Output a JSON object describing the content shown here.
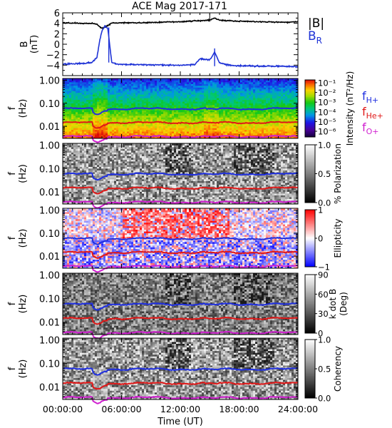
{
  "title": "ACE Mag 2017-171",
  "chart_data": [
    {
      "type": "line",
      "id": "b-field",
      "ylabel": "B",
      "yunit": "(nT)",
      "ylim": [
        -6,
        6
      ],
      "yticks": [
        -4,
        -2,
        0,
        2,
        4,
        6
      ],
      "series": [
        {
          "name": "|B|",
          "color": "#000000",
          "x": [
            0,
            2,
            3,
            3.5,
            4,
            4.5,
            5,
            6,
            8,
            10,
            12,
            13,
            14,
            15,
            15.5,
            16,
            17,
            18,
            20,
            22,
            23,
            24
          ],
          "y": [
            4.1,
            4.0,
            4.0,
            3.8,
            3.0,
            3.5,
            4.0,
            4.1,
            4.1,
            4.2,
            4.3,
            4.4,
            4.5,
            4.6,
            5.0,
            4.6,
            4.5,
            4.4,
            4.3,
            4.2,
            4.2,
            4.3
          ]
        },
        {
          "name": "B",
          "subscript": "R",
          "color": "#1f33d6",
          "x": [
            0,
            2,
            3,
            3.5,
            3.8,
            4.0,
            4.3,
            4.6,
            5.0,
            5.5,
            8,
            10,
            12,
            13.5,
            14,
            15,
            15.5,
            16,
            17,
            18,
            20,
            22,
            24
          ],
          "y": [
            -3.8,
            -3.7,
            -3.5,
            -2.5,
            1.0,
            2.5,
            3.5,
            3.0,
            -3.5,
            -3.8,
            -3.9,
            -4.0,
            -4.0,
            -3.9,
            -2.8,
            -3.0,
            -1.5,
            -3.6,
            -4.0,
            -4.1,
            -4.2,
            -4.2,
            -4.3
          ]
        }
      ]
    },
    {
      "type": "heatmap",
      "id": "intensity",
      "ylabel": "f",
      "yunit": "(Hz)",
      "colorbar_label": "Intensity (nT²/Hz)",
      "colorbar_ticks": [
        "10⁻¹",
        "10⁻²",
        "10⁻³",
        "10⁻⁴",
        "10⁻⁵",
        "10⁻⁶"
      ],
      "colorbar_range": [
        -6.5,
        -0.8
      ],
      "color_scale": "rainbow"
    },
    {
      "type": "heatmap",
      "id": "polarization",
      "ylabel": "f",
      "yunit": "(Hz)",
      "colorbar_label": "% Polarization",
      "colorbar_ticks": [
        "1.0",
        "0.5",
        "0.0"
      ],
      "color_scale": "gray"
    },
    {
      "type": "heatmap",
      "id": "ellipticity",
      "ylabel": "f",
      "yunit": "(Hz)",
      "colorbar_label": "Ellipticity",
      "colorbar_ticks": [
        "1",
        "0",
        "−1"
      ],
      "color_scale": "red-white-blue"
    },
    {
      "type": "heatmap",
      "id": "kdotb",
      "ylabel": "f",
      "yunit": "(Hz)",
      "colorbar_label_lines": [
        "k dot B",
        "(Deg)"
      ],
      "colorbar_ticks": [
        "90",
        "60",
        "30",
        "0"
      ],
      "color_scale": "gray"
    },
    {
      "type": "heatmap",
      "id": "coherency",
      "ylabel": "f",
      "yunit": "(Hz)",
      "colorbar_label": "Coherency",
      "colorbar_ticks": [
        "1.0",
        "0.5",
        "0.0"
      ],
      "color_scale": "gray"
    }
  ],
  "freq_axis": {
    "ylim": [
      0.003,
      1.2
    ],
    "log": true,
    "ticks": [
      {
        "value": 1.0,
        "label": "1.00"
      },
      {
        "value": 0.1,
        "label": "0.10"
      },
      {
        "value": 0.01,
        "label": "0.01"
      }
    ]
  },
  "gyro_lines": [
    {
      "name": "f",
      "subscript": "H+",
      "color": "#1f2fe0",
      "base": 0.058
    },
    {
      "name": "f",
      "subscript": "He+",
      "color": "#e01818",
      "base": 0.0145
    },
    {
      "name": "f",
      "subscript": "O+",
      "color": "#d01fd0",
      "base": 0.0036
    }
  ],
  "x_axis": {
    "xlim": [
      0,
      24
    ],
    "label": "Time (UT)",
    "ticks": [
      {
        "value": 0,
        "label": "00:00:00"
      },
      {
        "value": 6,
        "label": "06:00:00"
      },
      {
        "value": 12,
        "label": "12:00:00"
      },
      {
        "value": 18,
        "label": "18:00:00"
      },
      {
        "value": 24,
        "label": "24:00:00"
      }
    ]
  }
}
